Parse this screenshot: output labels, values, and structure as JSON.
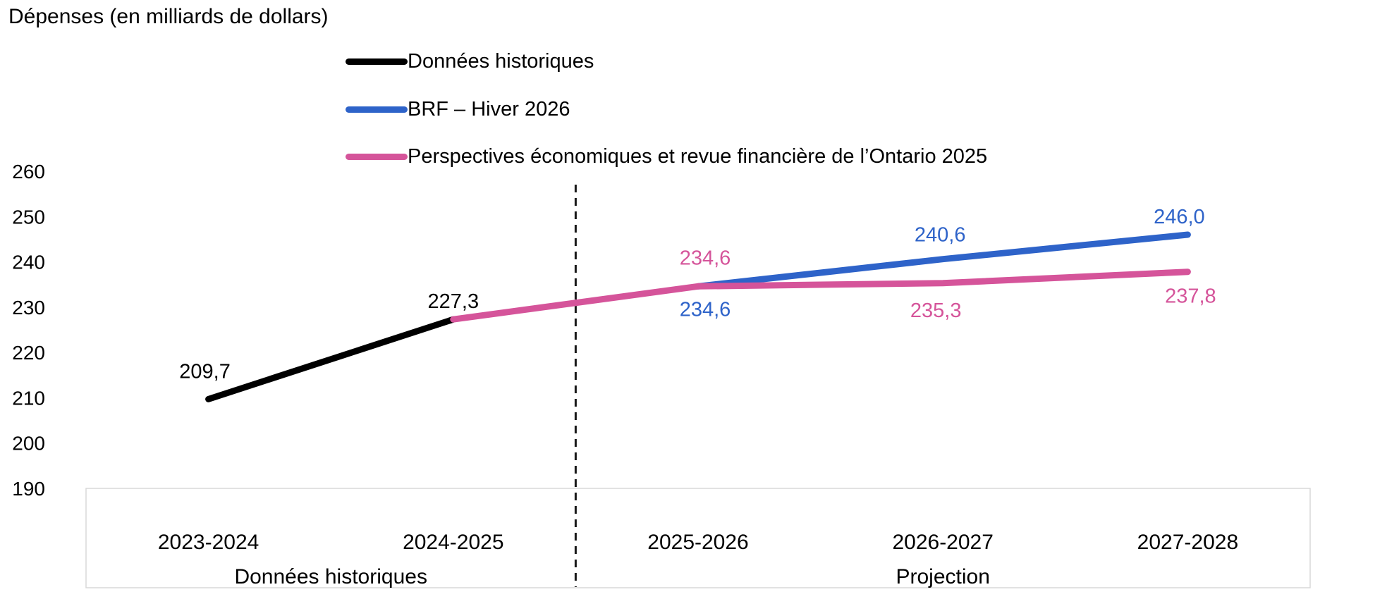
{
  "title": "Dépenses (en milliards de dollars)",
  "legend": {
    "items": [
      {
        "label": "Données historiques",
        "color": "#000000"
      },
      {
        "label": "BRF – Hiver 2026",
        "color": "#2E63C9"
      },
      {
        "label": "Perspectives économiques et revue financière de l’Ontario 2025",
        "color": "#D5549A"
      }
    ]
  },
  "chart_data": {
    "type": "line",
    "title": "Dépenses (en milliards de dollars)",
    "categories": [
      "2023-2024",
      "2024-2025",
      "2025-2026",
      "2026-2027",
      "2027-2028"
    ],
    "series": [
      {
        "name": "Données historiques",
        "color": "#000000",
        "values": [
          209.7,
          227.3,
          null,
          null,
          null
        ],
        "labels": [
          "209,7",
          "227,3",
          null,
          null,
          null
        ],
        "label_offsets": [
          [
            -5,
            -30
          ],
          [
            0,
            -16
          ],
          null,
          null,
          null
        ]
      },
      {
        "name": "BRF – Hiver 2026",
        "color": "#2E63C9",
        "values": [
          null,
          null,
          234.6,
          240.6,
          246.0
        ],
        "labels": [
          null,
          null,
          "234,6",
          "240,6",
          "246,0"
        ],
        "label_offsets": [
          null,
          null,
          [
            10,
            42
          ],
          [
            -4,
            -25
          ],
          [
            -12,
            -16
          ]
        ]
      },
      {
        "name": "Perspectives économiques et revue financière de l’Ontario 2025",
        "color": "#D5549A",
        "values": [
          null,
          227.3,
          234.6,
          235.3,
          237.8
        ],
        "labels": [
          null,
          null,
          "234,6",
          "235,3",
          "237,8"
        ],
        "label_offsets": [
          null,
          null,
          [
            10,
            -31
          ],
          [
            -10,
            48
          ],
          [
            4,
            44
          ]
        ]
      }
    ],
    "ylim": [
      190,
      260
    ],
    "yticks": [
      190,
      200,
      210,
      220,
      230,
      240,
      250,
      260
    ],
    "grid": false,
    "legend_position": "top-left",
    "separator": {
      "between": [
        "2024-2025",
        "2025-2026"
      ],
      "style": "dashed",
      "color": "#1A1A1A"
    },
    "sections": [
      {
        "label": "Données historiques",
        "categories": [
          "2023-2024",
          "2024-2025"
        ]
      },
      {
        "label": "Projection",
        "categories": [
          "2025-2026",
          "2026-2027",
          "2027-2028"
        ]
      }
    ],
    "axis_border_color": "#D9D9D9"
  }
}
